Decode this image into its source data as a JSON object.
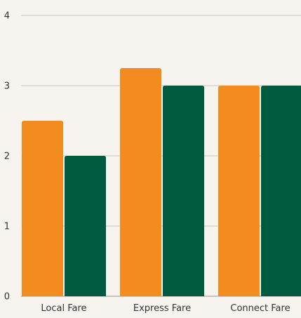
{
  "chart_data": {
    "type": "bar",
    "categories": [
      "Local Fare",
      "Express Fare",
      "Connect Fare"
    ],
    "series": [
      {
        "values": [
          2.5,
          3.25,
          3
        ],
        "color": "#f28c1e"
      },
      {
        "values": [
          2,
          3,
          3
        ],
        "color": "#005a3f"
      }
    ],
    "ylim": [
      0,
      4
    ],
    "yticks": [
      0,
      1,
      2,
      3,
      4
    ],
    "grid": true,
    "title": "",
    "xlabel": "",
    "ylabel": ""
  }
}
